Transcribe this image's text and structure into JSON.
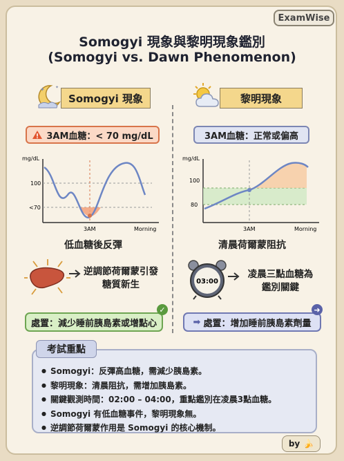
{
  "brand": "ExamWise",
  "title_line1": "Somogyi 現象與黎明現象鑑別",
  "title_line2": "(Somogyi vs. Dawn Phenomenon)",
  "left": {
    "heading": "Somogyi 現象",
    "alert": "3AM血糖：< 70 mg/dL",
    "caption": "低血糖後反彈",
    "desc_line1": "逆調節荷爾蒙引發",
    "desc_line2": "糖質新生",
    "action": "處置：減少睡前胰島素或增點心",
    "chart": {
      "ylabel": "mg/dL",
      "tick_100": "100",
      "tick_70": "<70",
      "x_3am": "3AM",
      "x_morning": "Morning"
    }
  },
  "right": {
    "heading": "黎明現象",
    "alert": "3AM血糖：正常或偏高",
    "caption": "清晨荷爾蒙阻抗",
    "desc_line1": "凌晨三點血糖為",
    "desc_line2": "鑑別關鍵",
    "action": "處置：增加睡前胰島素劑量",
    "clock_time": "03:00",
    "chart": {
      "ylabel": "mg/dL",
      "tick_100": "100",
      "tick_80": "80",
      "x_3am": "3AM",
      "x_morning": "Morning"
    }
  },
  "exam": {
    "title": "考試重點",
    "points": [
      "Somogyi：反彈高血糖，需減少胰島素。",
      "黎明現象：清晨阻抗，需增加胰島素。",
      "關鍵觀測時間：02:00 – 04:00，重點鑑別在凌晨3點血糖。",
      "Somogyi 有低血糖事件，黎明現象無。",
      "逆調節荷爾蒙作用是 Somogyi 的核心機制。"
    ]
  },
  "footer": {
    "by": "by"
  },
  "colors": {
    "alert_orange": "#d8744a",
    "accent_blue": "#7c86b3",
    "green": "#6ea552",
    "banner": "#f4d78c"
  }
}
